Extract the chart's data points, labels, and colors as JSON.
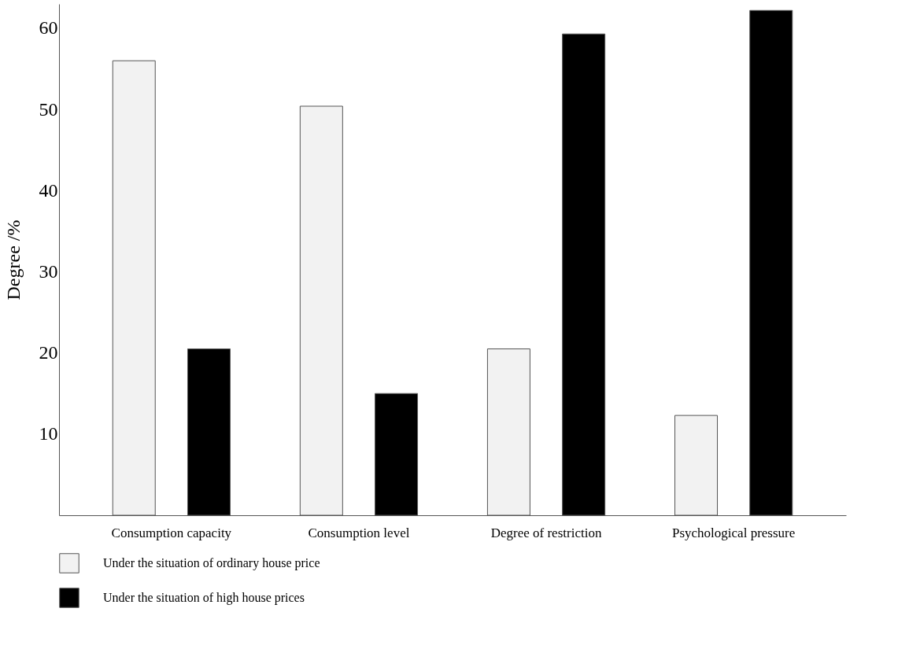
{
  "chart_data": {
    "type": "bar",
    "ylabel": "Degree /%",
    "categories": [
      "Consumption capacity",
      "Consumption level",
      "Degree of restriction",
      "Psychological pressure"
    ],
    "series": [
      {
        "name": "Under the situation of ordinary house price",
        "color": "#f2f2f2",
        "values": [
          56,
          50.4,
          20.5,
          12.3
        ]
      },
      {
        "name": "Under the situation of high house prices",
        "color": "#000000",
        "values": [
          20.5,
          15,
          59.3,
          62.2
        ]
      }
    ],
    "ylim": [
      0,
      63
    ],
    "yticks": [
      10,
      20,
      30,
      40,
      50,
      60
    ],
    "grid": false,
    "legend": "bottom"
  }
}
